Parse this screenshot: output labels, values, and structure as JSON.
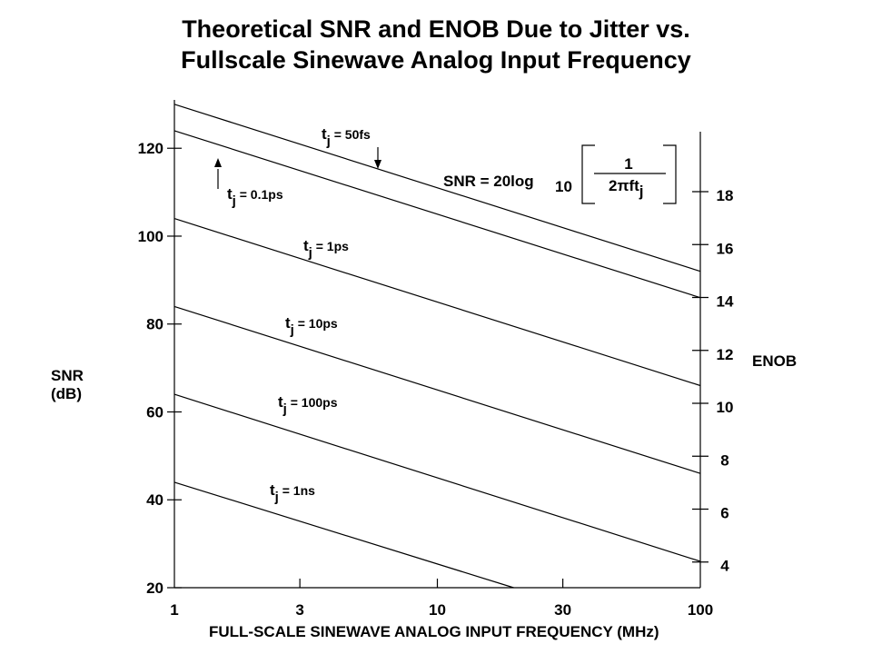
{
  "chart_data": {
    "type": "line",
    "title": "Theoretical SNR and ENOB Due to Jitter vs.",
    "subtitle": "Fullscale Sinewave Analog Input Frequency",
    "xlabel": "FULL-SCALE SINEWAVE ANALOG INPUT FREQUENCY (MHz)",
    "ylabel": "SNR",
    "ylabel_unit": "(dB)",
    "y2label": "ENOB",
    "xscale": "log",
    "xlim": [
      1,
      100
    ],
    "ylim": [
      20,
      131
    ],
    "x_ticks": [
      "1",
      "3",
      "10",
      "30",
      "100"
    ],
    "x_tick_values": [
      1,
      3,
      10,
      30,
      100
    ],
    "y_ticks": [
      "20",
      "40",
      "60",
      "80",
      "100",
      "120"
    ],
    "y_tick_values": [
      20,
      40,
      60,
      80,
      100,
      120
    ],
    "y2_ticks": [
      {
        "label": "18",
        "enob": 18
      },
      {
        "label": "16",
        "enob": 16
      },
      {
        "label": "14",
        "enob": 14
      },
      {
        "label": "12",
        "enob": 12
      },
      {
        "label": "10",
        "enob": 10
      },
      {
        "label": "8",
        "enob": 8
      },
      {
        "label": "6",
        "enob": 6
      },
      {
        "label": "4",
        "enob": 4
      }
    ],
    "series": [
      {
        "name": "50fs",
        "x": [
          1,
          100
        ],
        "y": [
          130,
          92
        ]
      },
      {
        "name": "0.1ps",
        "x": [
          1,
          100
        ],
        "y": [
          124,
          86
        ]
      },
      {
        "name": "1ps",
        "x": [
          1,
          100
        ],
        "y": [
          104,
          66
        ]
      },
      {
        "name": "10ps",
        "x": [
          1,
          100
        ],
        "y": [
          84,
          46
        ]
      },
      {
        "name": "100ps",
        "x": [
          1,
          100
        ],
        "y": [
          64,
          26
        ]
      },
      {
        "name": "1ns",
        "x": [
          1,
          19.5
        ],
        "y": [
          44,
          20
        ]
      }
    ],
    "formula": {
      "lhs": "SNR",
      "eq": "=",
      "fn": "20log",
      "sub": "10",
      "num": "1",
      "den": "2πft",
      "den_sub": "j"
    },
    "grid": false
  }
}
